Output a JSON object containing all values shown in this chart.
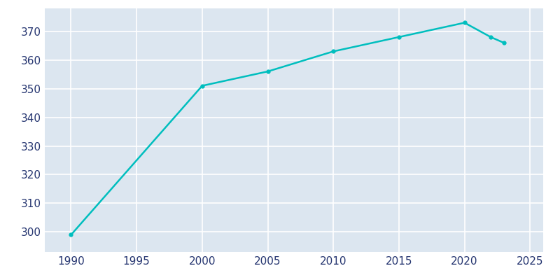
{
  "years": [
    1990,
    2000,
    2005,
    2010,
    2015,
    2020,
    2022,
    2023
  ],
  "population": [
    299,
    351,
    356,
    363,
    368,
    373,
    368,
    366
  ],
  "line_color": "#00BEBE",
  "plot_bg_color": "#dce6f0",
  "fig_bg_color": "#ffffff",
  "grid_color": "#ffffff",
  "tick_color": "#253570",
  "ylim": [
    293,
    378
  ],
  "xlim": [
    1988,
    2026
  ],
  "yticks": [
    300,
    310,
    320,
    330,
    340,
    350,
    360,
    370
  ],
  "xticks": [
    1990,
    1995,
    2000,
    2005,
    2010,
    2015,
    2020,
    2025
  ],
  "linewidth": 1.8,
  "marker": "o",
  "markersize": 3.5,
  "tick_fontsize": 11
}
